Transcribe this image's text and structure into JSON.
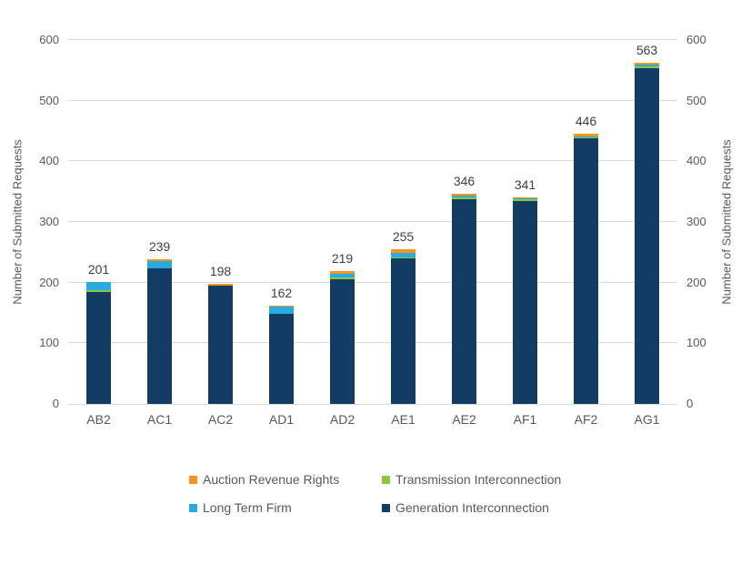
{
  "chart_data": {
    "type": "bar",
    "stacked": true,
    "title": "",
    "categories": [
      "AB2",
      "AC1",
      "AC2",
      "AD1",
      "AD2",
      "AE1",
      "AE2",
      "AF1",
      "AF2",
      "AG1"
    ],
    "totals": [
      201,
      239,
      198,
      162,
      219,
      255,
      346,
      341,
      446,
      563
    ],
    "series": [
      {
        "name": "Generation Interconnection",
        "color": "#123c63",
        "values": [
          184,
          224,
          195,
          149,
          205,
          240,
          338,
          335,
          438,
          554
        ]
      },
      {
        "name": "Transmission Interconnection",
        "color": "#8dc63f",
        "values": [
          4,
          0,
          0,
          0,
          4,
          2,
          3,
          3,
          2,
          3
        ]
      },
      {
        "name": "Long Term Firm",
        "color": "#29abe2",
        "values": [
          13,
          12,
          0,
          11,
          5,
          7,
          2,
          2,
          1,
          2
        ]
      },
      {
        "name": "Auction Revenue Rights",
        "color": "#f7941d",
        "values": [
          0,
          3,
          3,
          2,
          5,
          6,
          3,
          1,
          5,
          4
        ]
      }
    ],
    "ylabel_left": "Number of Submitted Requests",
    "ylabel_right": "Number of Submitted Requests",
    "xlabel": "",
    "ylim": [
      0,
      600
    ],
    "yticks": [
      0,
      100,
      200,
      300,
      400,
      500,
      600
    ],
    "grid": true,
    "legend_position": "bottom"
  },
  "legend": {
    "items": [
      {
        "label": "Auction Revenue Rights",
        "color": "#f7941d"
      },
      {
        "label": "Transmission Interconnection",
        "color": "#8dc63f"
      },
      {
        "label": "Long Term Firm",
        "color": "#29abe2"
      },
      {
        "label": "Generation Interconnection",
        "color": "#123c63"
      }
    ]
  }
}
